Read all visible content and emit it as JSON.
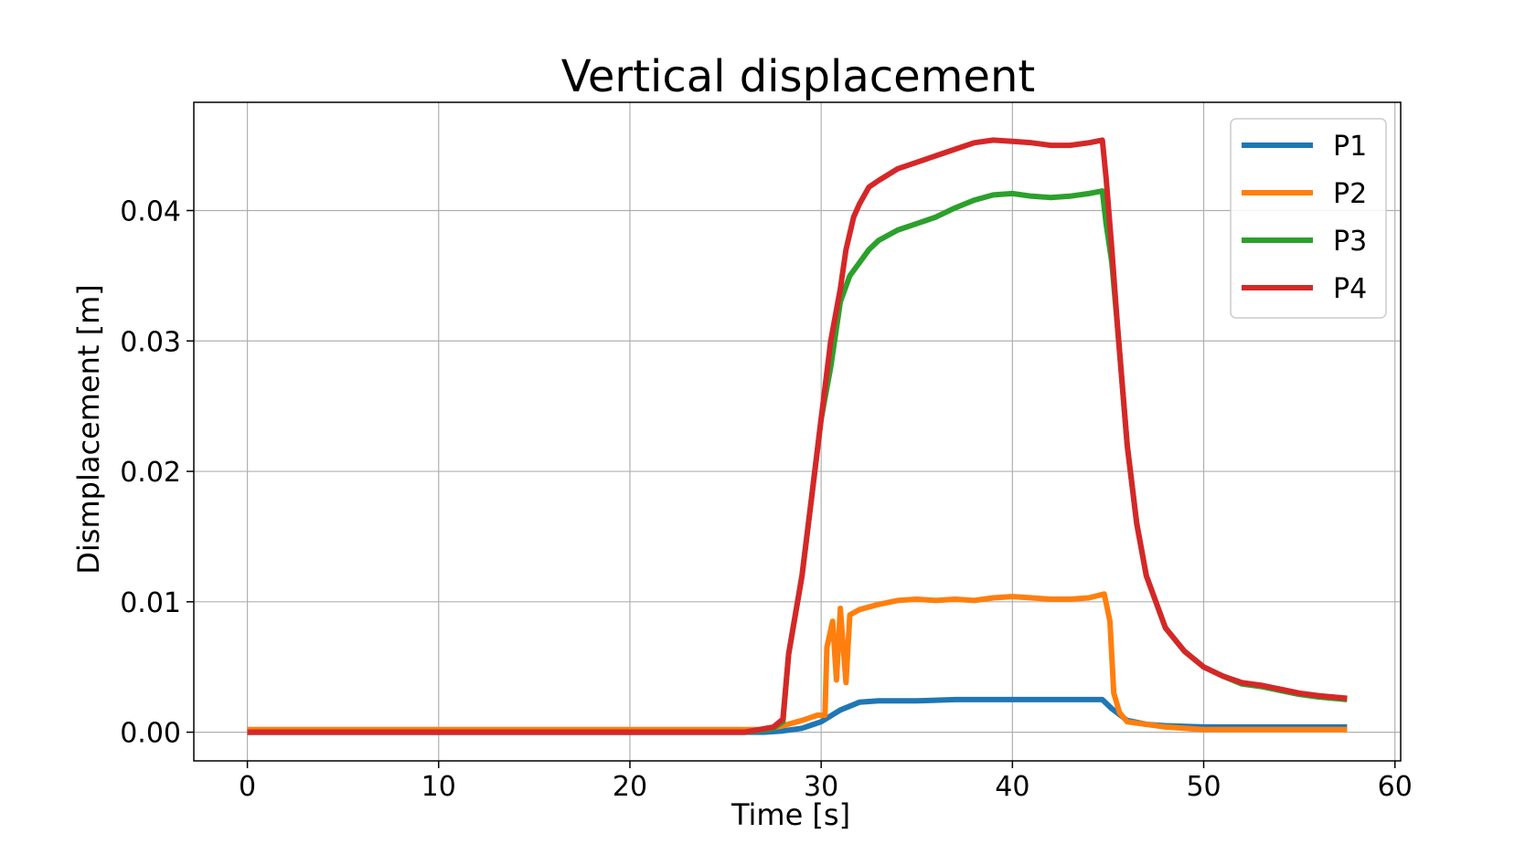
{
  "chart_data": {
    "type": "line",
    "title": "Vertical displacement",
    "xlabel": "Time [s]",
    "ylabel": "Dismplacement [m]",
    "xlim": [
      -2.8,
      60.3
    ],
    "ylim": [
      -0.0022,
      0.0483
    ],
    "xticks": [
      0,
      10,
      20,
      30,
      40,
      50,
      60
    ],
    "yticks": [
      0.0,
      0.01,
      0.02,
      0.03,
      0.04
    ],
    "xtick_labels": [
      "0",
      "10",
      "20",
      "30",
      "40",
      "50",
      "60"
    ],
    "ytick_labels": [
      "0.00",
      "0.01",
      "0.02",
      "0.03",
      "0.04"
    ],
    "grid": true,
    "legend_position": "top-right",
    "series": [
      {
        "name": "P1",
        "color": "#1f77b4",
        "points": [
          [
            0,
            0
          ],
          [
            10,
            0
          ],
          [
            20,
            0
          ],
          [
            27,
            0
          ],
          [
            28,
            0.0001
          ],
          [
            29,
            0.0003
          ],
          [
            30,
            0.0008
          ],
          [
            31,
            0.0017
          ],
          [
            32,
            0.0023
          ],
          [
            33,
            0.0024
          ],
          [
            35,
            0.0024
          ],
          [
            37,
            0.0025
          ],
          [
            40,
            0.0025
          ],
          [
            43,
            0.0025
          ],
          [
            44.7,
            0.0025
          ],
          [
            45.2,
            0.0018
          ],
          [
            46,
            0.0009
          ],
          [
            47,
            0.0006
          ],
          [
            48,
            0.0005
          ],
          [
            50,
            0.0004
          ],
          [
            52,
            0.0004
          ],
          [
            55,
            0.0004
          ],
          [
            57.5,
            0.0004
          ]
        ]
      },
      {
        "name": "P2",
        "color": "#ff7f0e",
        "points": [
          [
            0,
            0.0002
          ],
          [
            5,
            0.0002
          ],
          [
            10,
            0.0002
          ],
          [
            15,
            0.0002
          ],
          [
            20,
            0.0002
          ],
          [
            25,
            0.0002
          ],
          [
            27,
            0.0002
          ],
          [
            28,
            0.0005
          ],
          [
            29,
            0.0009
          ],
          [
            29.8,
            0.0013
          ],
          [
            30.2,
            0.0013
          ],
          [
            30.3,
            0.0065
          ],
          [
            30.6,
            0.0085
          ],
          [
            30.8,
            0.004
          ],
          [
            31.0,
            0.0095
          ],
          [
            31.3,
            0.0038
          ],
          [
            31.5,
            0.009
          ],
          [
            32,
            0.0094
          ],
          [
            33,
            0.0098
          ],
          [
            34,
            0.0101
          ],
          [
            35,
            0.0102
          ],
          [
            36,
            0.0101
          ],
          [
            37,
            0.0102
          ],
          [
            38,
            0.0101
          ],
          [
            39,
            0.0103
          ],
          [
            40,
            0.0104
          ],
          [
            41,
            0.0103
          ],
          [
            42,
            0.0102
          ],
          [
            43,
            0.0102
          ],
          [
            44,
            0.0103
          ],
          [
            44.8,
            0.0106
          ],
          [
            45.1,
            0.0085
          ],
          [
            45.3,
            0.003
          ],
          [
            45.6,
            0.0015
          ],
          [
            46,
            0.0008
          ],
          [
            47,
            0.0006
          ],
          [
            48,
            0.0004
          ],
          [
            50,
            0.0002
          ],
          [
            52,
            0.0002
          ],
          [
            55,
            0.0002
          ],
          [
            57.5,
            0.0002
          ]
        ]
      },
      {
        "name": "P3",
        "color": "#2ca02c",
        "points": [
          [
            0,
            0
          ],
          [
            10,
            0
          ],
          [
            20,
            0
          ],
          [
            26,
            0
          ],
          [
            27.5,
            0.0003
          ],
          [
            28,
            0.0008
          ],
          [
            28.3,
            0.006
          ],
          [
            29,
            0.012
          ],
          [
            29.5,
            0.018
          ],
          [
            30,
            0.024
          ],
          [
            30.5,
            0.028
          ],
          [
            31,
            0.033
          ],
          [
            31.5,
            0.035
          ],
          [
            32,
            0.036
          ],
          [
            32.5,
            0.037
          ],
          [
            33,
            0.0377
          ],
          [
            34,
            0.0385
          ],
          [
            35,
            0.039
          ],
          [
            36,
            0.0395
          ],
          [
            37,
            0.0402
          ],
          [
            38,
            0.0408
          ],
          [
            39,
            0.0412
          ],
          [
            40,
            0.0413
          ],
          [
            41,
            0.0411
          ],
          [
            42,
            0.041
          ],
          [
            43,
            0.0411
          ],
          [
            44,
            0.0413
          ],
          [
            44.7,
            0.0415
          ],
          [
            44.9,
            0.039
          ],
          [
            45.2,
            0.036
          ],
          [
            45.5,
            0.031
          ],
          [
            46,
            0.022
          ],
          [
            46.5,
            0.016
          ],
          [
            47,
            0.012
          ],
          [
            48,
            0.008
          ],
          [
            49,
            0.0062
          ],
          [
            50,
            0.005
          ],
          [
            51,
            0.0043
          ],
          [
            52,
            0.0037
          ],
          [
            53,
            0.0035
          ],
          [
            54,
            0.0032
          ],
          [
            55,
            0.0029
          ],
          [
            56,
            0.0027
          ],
          [
            57.5,
            0.0025
          ]
        ]
      },
      {
        "name": "P4",
        "color": "#d62728",
        "points": [
          [
            0,
            0
          ],
          [
            10,
            0
          ],
          [
            20,
            0
          ],
          [
            26,
            0
          ],
          [
            27.5,
            0.0004
          ],
          [
            28,
            0.001
          ],
          [
            28.3,
            0.006
          ],
          [
            29,
            0.012
          ],
          [
            29.5,
            0.018
          ],
          [
            30,
            0.024
          ],
          [
            30.5,
            0.03
          ],
          [
            31,
            0.034
          ],
          [
            31.3,
            0.037
          ],
          [
            31.7,
            0.0395
          ],
          [
            32,
            0.0405
          ],
          [
            32.5,
            0.0418
          ],
          [
            33,
            0.0423
          ],
          [
            34,
            0.0432
          ],
          [
            35,
            0.0437
          ],
          [
            36,
            0.0442
          ],
          [
            37,
            0.0447
          ],
          [
            38,
            0.0452
          ],
          [
            39,
            0.0454
          ],
          [
            40,
            0.0453
          ],
          [
            41,
            0.0452
          ],
          [
            42,
            0.045
          ],
          [
            43,
            0.045
          ],
          [
            44,
            0.0452
          ],
          [
            44.7,
            0.0454
          ],
          [
            44.9,
            0.0425
          ],
          [
            45.2,
            0.037
          ],
          [
            45.5,
            0.031
          ],
          [
            46,
            0.022
          ],
          [
            46.5,
            0.016
          ],
          [
            47,
            0.012
          ],
          [
            48,
            0.008
          ],
          [
            49,
            0.0062
          ],
          [
            50,
            0.005
          ],
          [
            51,
            0.0043
          ],
          [
            52,
            0.0038
          ],
          [
            53,
            0.0036
          ],
          [
            54,
            0.0033
          ],
          [
            55,
            0.003
          ],
          [
            56,
            0.0028
          ],
          [
            57.5,
            0.0026
          ]
        ]
      }
    ]
  }
}
